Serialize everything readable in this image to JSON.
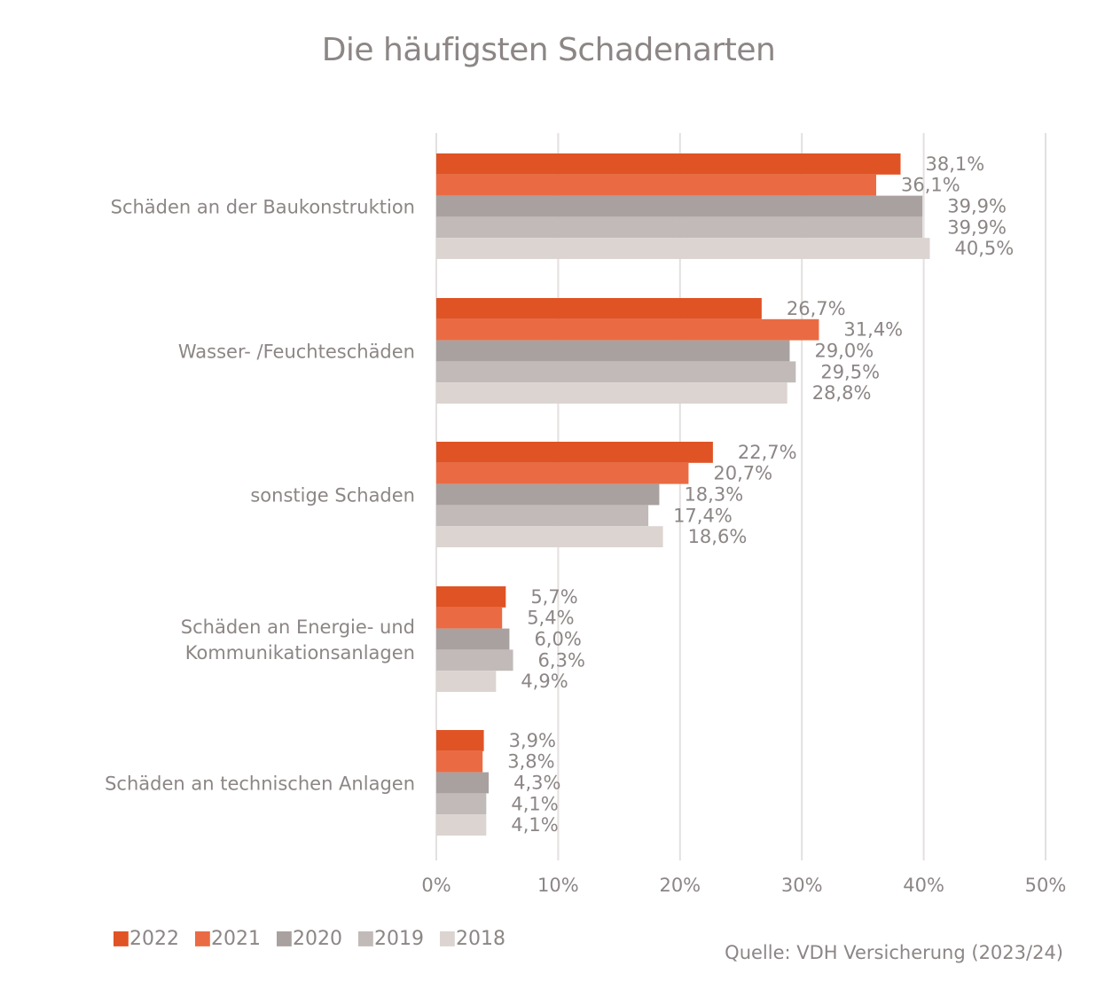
{
  "chart_data": {
    "type": "bar",
    "orientation": "horizontal",
    "title": "Die häufigsten Schadenarten",
    "categories": [
      [
        "Schäden an der Baukonstruktion"
      ],
      [
        "Wasser- /Feuchteschäden"
      ],
      [
        "sonstige Schaden"
      ],
      [
        "Schäden an Energie- und",
        "Kommunikationsanlagen"
      ],
      [
        "Schäden an technischen Anlagen"
      ]
    ],
    "series": [
      {
        "name": "2022",
        "color": "#e05325",
        "values": [
          38.1,
          26.7,
          22.7,
          5.7,
          3.9
        ],
        "labels": [
          "38,1%",
          "26,7%",
          "22,7%",
          "5,7%",
          "3,9%"
        ]
      },
      {
        "name": "2021",
        "color": "#ea6b43",
        "values": [
          36.1,
          31.4,
          20.7,
          5.4,
          3.8
        ],
        "labels": [
          "36,1%",
          "31,4%",
          "20,7%",
          "5,4%",
          "3,8%"
        ]
      },
      {
        "name": "2020",
        "color": "#a9a19f",
        "values": [
          39.9,
          29.0,
          18.3,
          6.0,
          4.3
        ],
        "labels": [
          "39,9%",
          "29,0%",
          "18,3%",
          "6,0%",
          "4,3%"
        ]
      },
      {
        "name": "2019",
        "color": "#c1bab8",
        "values": [
          39.9,
          29.5,
          17.4,
          6.3,
          4.1
        ],
        "labels": [
          "39,9%",
          "29,5%",
          "17,4%",
          "6,3%",
          "4,1%"
        ]
      },
      {
        "name": "2018",
        "color": "#dbd4d1",
        "values": [
          40.5,
          28.8,
          18.6,
          4.9,
          4.1
        ],
        "labels": [
          "40,5%",
          "28,8%",
          "18,6%",
          "4,9%",
          "4,1%"
        ]
      }
    ],
    "xlim": [
      0,
      50
    ],
    "xticks": [
      0,
      10,
      20,
      30,
      40,
      50
    ],
    "xtick_labels": [
      "0%",
      "10%",
      "20%",
      "30%",
      "40%",
      "50%"
    ],
    "grid": true,
    "legend": "bottom-left"
  },
  "legend_marker": "■",
  "source": "Quelle: VDH Versicherung (2023/24)"
}
